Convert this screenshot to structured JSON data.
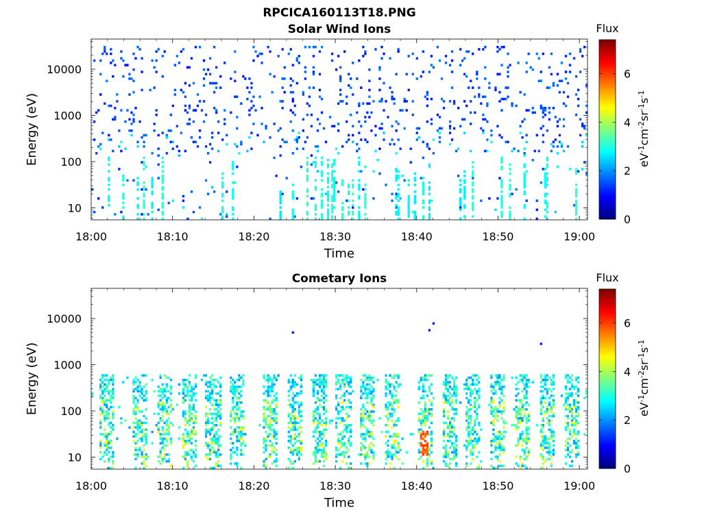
{
  "figure": {
    "suptitle": "RPCICA160113T18.PNG"
  },
  "colorbar": {
    "title": "Flux",
    "label_parts": [
      "eV",
      "-1",
      "cm",
      "-2",
      "sr",
      "-1",
      "s",
      "-1"
    ],
    "ticks": [
      "0",
      "2",
      "4",
      "6"
    ],
    "range": [
      0,
      7.4
    ],
    "colormap": "jet"
  },
  "chart_data": [
    {
      "type": "heatmap",
      "title": "Solar Wind Ions",
      "xlabel": "Time",
      "ylabel": "Energy (eV)",
      "x_ticks": [
        "18:00",
        "18:10",
        "18:20",
        "18:30",
        "18:40",
        "18:50",
        "19:00"
      ],
      "x_range": [
        "18:00",
        "19:01"
      ],
      "y_scale": "log",
      "y_ticks": [
        "10",
        "100",
        "1000",
        "10000"
      ],
      "y_range": [
        5.5,
        45000
      ],
      "features": [
        {
          "description": "sparse low flux speckle",
          "energy_range_eV": [
            150,
            30000
          ],
          "flux": 1.2
        },
        {
          "description": "intermittent moderate flux streaks",
          "energy_range_eV": [
            6,
            200
          ],
          "flux": 2.8
        }
      ]
    },
    {
      "type": "heatmap",
      "title": "Cometary Ions",
      "xlabel": "Time",
      "ylabel": "Energy (eV)",
      "x_ticks": [
        "18:00",
        "18:10",
        "18:20",
        "18:30",
        "18:40",
        "18:50",
        "19:00"
      ],
      "x_range": [
        "18:00",
        "19:01"
      ],
      "y_scale": "log",
      "y_ticks": [
        "10",
        "100",
        "1000",
        "10000"
      ],
      "y_range": [
        5.5,
        45000
      ],
      "features": [
        {
          "description": "periodic vertical bursts",
          "energy_range_eV": [
            10,
            600
          ],
          "flux": 3.5
        },
        {
          "description": "peak flux near 18:41",
          "time": "18:41",
          "energy_eV": 20,
          "flux": 5.8
        }
      ],
      "burst_times": [
        "18:02",
        "18:06",
        "18:09",
        "18:12",
        "18:15",
        "18:18",
        "18:22",
        "18:25",
        "18:28",
        "18:31",
        "18:34",
        "18:37",
        "18:41",
        "18:44",
        "18:47",
        "18:50",
        "18:53",
        "18:56",
        "18:59"
      ]
    }
  ]
}
